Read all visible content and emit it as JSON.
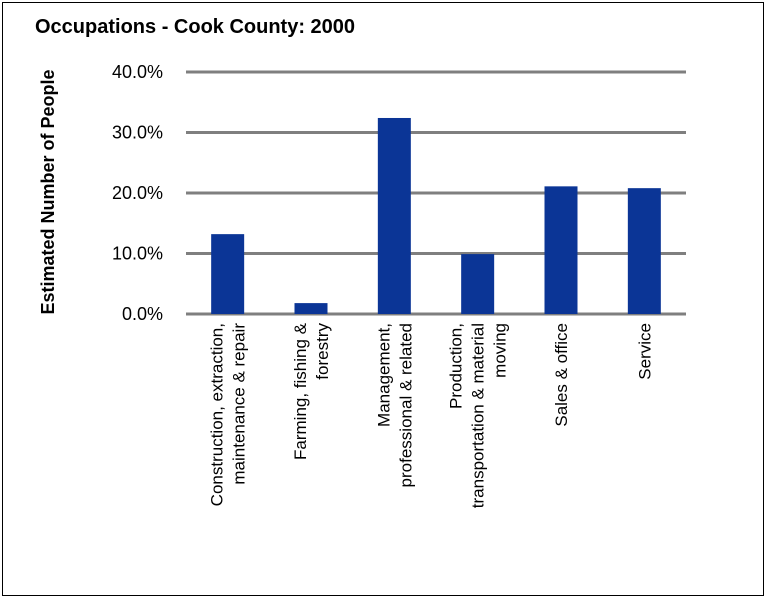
{
  "chart_data": {
    "type": "bar",
    "title": "Occupations - Cook County: 2000",
    "xlabel": "",
    "ylabel": "Estimated Number of People",
    "ylim": [
      0,
      40
    ],
    "yticks": [
      "0.0%",
      "10.0%",
      "20.0%",
      "30.0%",
      "40.0%"
    ],
    "grid": true,
    "categories": [
      [
        "Construction, extraction,",
        "maintenance & repair"
      ],
      [
        "Farming, fishing &",
        "forestry"
      ],
      [
        "Management,",
        "professional & related"
      ],
      [
        "Production,",
        "transportation & material",
        "moving"
      ],
      [
        "Sales & office"
      ],
      [
        "Service"
      ]
    ],
    "values": [
      13.2,
      1.8,
      32.4,
      9.9,
      21.1,
      20.8
    ],
    "colors": {
      "bar": "#0b3596",
      "grid": "#7f7f7f"
    }
  }
}
